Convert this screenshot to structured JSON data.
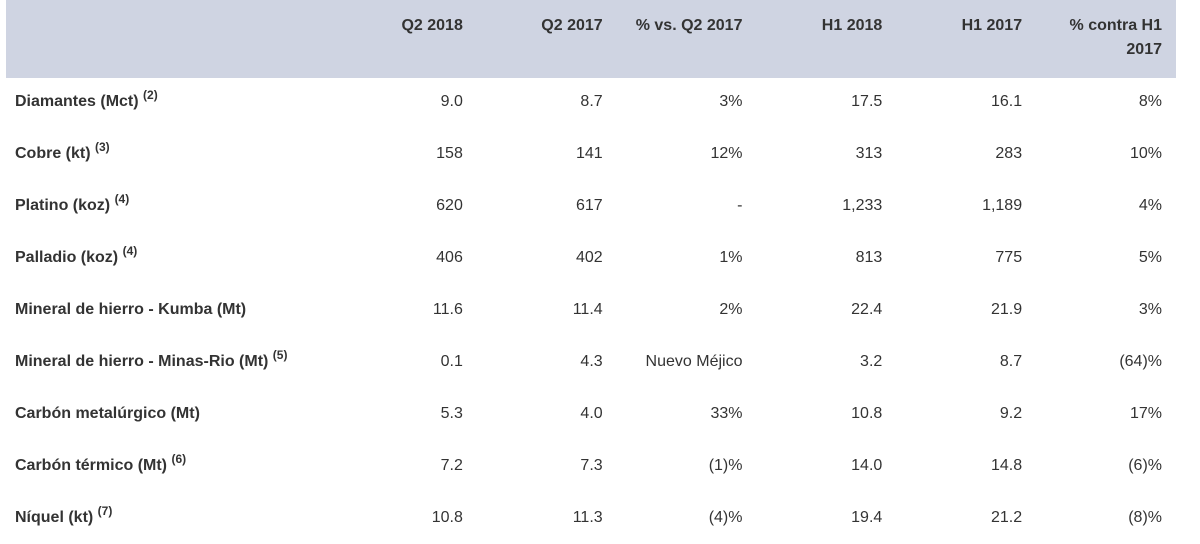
{
  "table": {
    "headers": [
      "",
      "Q2 2018",
      "Q2 2017",
      "% vs. Q2 2017",
      "H1 2018",
      "H1 2017",
      "% contra H1 2017"
    ],
    "rows": [
      {
        "label": "Diamantes (Mct)",
        "note": "(2)",
        "values": [
          "9.0",
          "8.7",
          "3%",
          "17.5",
          "16.1",
          "8%"
        ]
      },
      {
        "label": "Cobre (kt)",
        "note": "(3)",
        "values": [
          "158",
          "141",
          "12%",
          "313",
          "283",
          "10%"
        ]
      },
      {
        "label": "Platino (koz)",
        "note": "(4)",
        "values": [
          "620",
          "617",
          "-",
          "1,233",
          "1,189",
          "4%"
        ]
      },
      {
        "label": "Palladio (koz)",
        "note": "(4)",
        "values": [
          "406",
          "402",
          "1%",
          "813",
          "775",
          "5%"
        ]
      },
      {
        "label": "Mineral de hierro - Kumba (Mt)",
        "note": "",
        "values": [
          "11.6",
          "11.4",
          "2%",
          "22.4",
          "21.9",
          "3%"
        ]
      },
      {
        "label": "Mineral de hierro - Minas-Rio (Mt)",
        "note": "(5)",
        "values": [
          "0.1",
          "4.3",
          "Nuevo Méjico",
          "3.2",
          "8.7",
          "(64)%"
        ]
      },
      {
        "label": "Carbón metalúrgico (Mt)",
        "note": "",
        "values": [
          "5.3",
          "4.0",
          "33%",
          "10.8",
          "9.2",
          "17%"
        ]
      },
      {
        "label": "Carbón térmico (Mt)",
        "note": "(6)",
        "values": [
          "7.2",
          "7.3",
          "(1)%",
          "14.0",
          "14.8",
          "(6)%"
        ]
      },
      {
        "label": "Níquel (kt)",
        "note": "(7)",
        "values": [
          "10.8",
          "11.3",
          "(4)%",
          "19.4",
          "21.2",
          "(8)%"
        ]
      }
    ]
  },
  "colors": {
    "header_bg": "#cfd4e2",
    "text": "#333333"
  }
}
